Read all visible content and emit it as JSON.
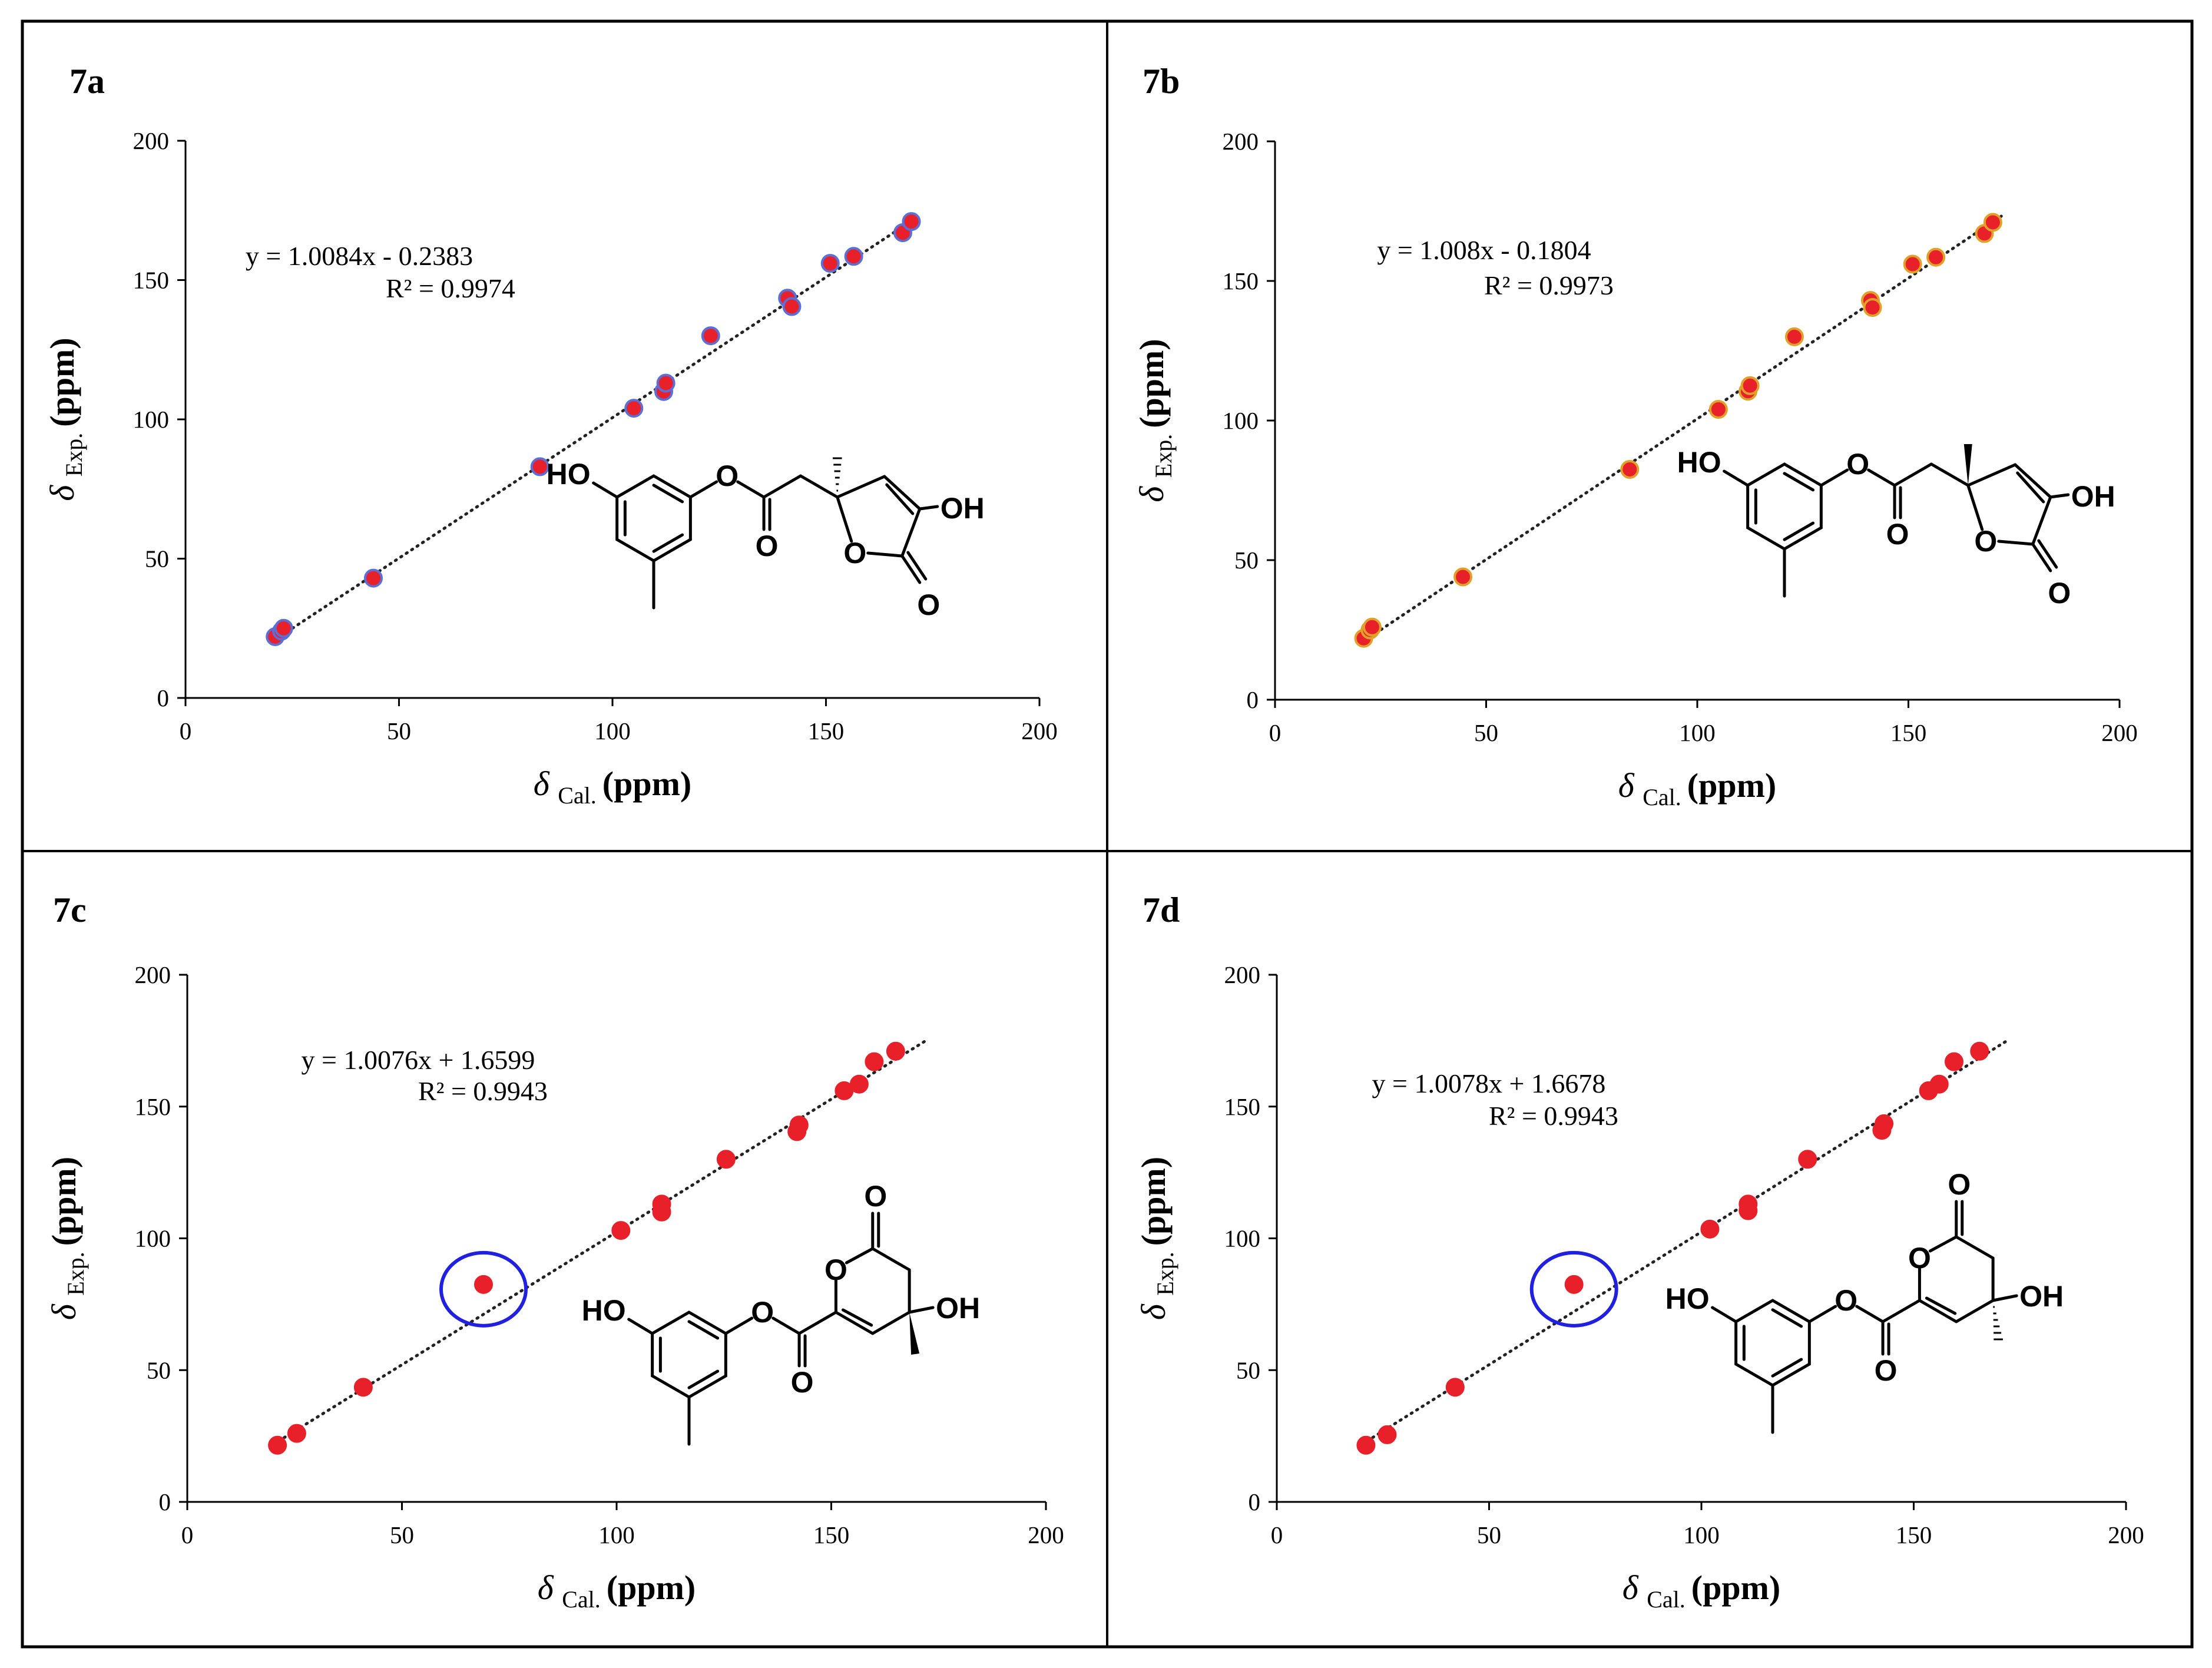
{
  "chart_data": [
    {
      "id": "7a",
      "type": "scatter",
      "panel_label": "7a",
      "xlabel": "δ Cal. (ppm)",
      "ylabel": "δ Exp. (ppm)",
      "xlim": [
        0,
        200
      ],
      "ylim": [
        0,
        200
      ],
      "xticks": [
        0,
        50,
        100,
        150,
        200
      ],
      "yticks": [
        0,
        50,
        100,
        150,
        200
      ],
      "trendline": {
        "slope": 1.0084,
        "intercept": -0.2383,
        "style": "dotted"
      },
      "equation": "y = 1.0084x - 0.2383",
      "r2": "R² = 0.9974",
      "marker_color": "#e8202a",
      "marker_edge": "#5b6fd6",
      "highlighted_point": null,
      "points": [
        {
          "x": 21,
          "y": 22
        },
        {
          "x": 22.5,
          "y": 24
        },
        {
          "x": 23,
          "y": 25
        },
        {
          "x": 44,
          "y": 43
        },
        {
          "x": 83,
          "y": 83
        },
        {
          "x": 105,
          "y": 104
        },
        {
          "x": 112,
          "y": 110
        },
        {
          "x": 112.5,
          "y": 113
        },
        {
          "x": 123,
          "y": 130
        },
        {
          "x": 141,
          "y": 143.5
        },
        {
          "x": 142,
          "y": 140.5
        },
        {
          "x": 151,
          "y": 156
        },
        {
          "x": 156.5,
          "y": 158.5
        },
        {
          "x": 168,
          "y": 167
        },
        {
          "x": 170,
          "y": 171
        }
      ],
      "structure": {
        "labels": [
          "HO",
          "O",
          "O",
          "OH",
          "O",
          "O"
        ],
        "stereo": "hash"
      }
    },
    {
      "id": "7b",
      "type": "scatter",
      "panel_label": "7b",
      "xlabel": "δ Cal. (ppm)",
      "ylabel": "δ Exp. (ppm)",
      "xlim": [
        0,
        200
      ],
      "ylim": [
        0,
        200
      ],
      "xticks": [
        0,
        50,
        100,
        150,
        200
      ],
      "yticks": [
        0,
        50,
        100,
        150,
        200
      ],
      "trendline": {
        "slope": 1.008,
        "intercept": -0.1804,
        "style": "dotted"
      },
      "equation": "y = 1.008x - 0.1804",
      "r2": "R² = 0.9973",
      "marker_color": "#e8202a",
      "marker_edge": "#e0a02a",
      "highlighted_point": null,
      "points": [
        {
          "x": 21,
          "y": 22
        },
        {
          "x": 22.5,
          "y": 25
        },
        {
          "x": 23,
          "y": 26
        },
        {
          "x": 44.5,
          "y": 44
        },
        {
          "x": 84,
          "y": 82.5
        },
        {
          "x": 105,
          "y": 104
        },
        {
          "x": 112,
          "y": 110.5
        },
        {
          "x": 112.5,
          "y": 112.5
        },
        {
          "x": 123,
          "y": 130
        },
        {
          "x": 141,
          "y": 143
        },
        {
          "x": 141.5,
          "y": 140.5
        },
        {
          "x": 151,
          "y": 156
        },
        {
          "x": 156.5,
          "y": 158.5
        },
        {
          "x": 168,
          "y": 167
        },
        {
          "x": 170,
          "y": 171
        }
      ],
      "structure": {
        "labels": [
          "HO",
          "O",
          "O",
          "OH",
          "O",
          "O"
        ],
        "stereo": "wedge"
      }
    },
    {
      "id": "7c",
      "type": "scatter",
      "panel_label": "7c",
      "xlabel": "δ Cal. (ppm)",
      "ylabel": "δ Exp. (ppm)",
      "xlim": [
        0,
        200
      ],
      "ylim": [
        0,
        200
      ],
      "xticks": [
        0,
        50,
        100,
        150,
        200
      ],
      "yticks": [
        0,
        50,
        100,
        150,
        200
      ],
      "trendline": {
        "slope": 1.0076,
        "intercept": 1.6599,
        "style": "dotted"
      },
      "equation": "y = 1.0076x + 1.6599",
      "r2": "R² = 0.9943",
      "marker_color": "#e8202a",
      "marker_edge": "#e8202a",
      "highlighted_point": {
        "x": 69,
        "y": 82.5
      },
      "highlight_color": "#2020e0",
      "points": [
        {
          "x": 21,
          "y": 21.5
        },
        {
          "x": 25.5,
          "y": 26
        },
        {
          "x": 41,
          "y": 43.5
        },
        {
          "x": 69,
          "y": 82.5
        },
        {
          "x": 101,
          "y": 103
        },
        {
          "x": 110.5,
          "y": 110
        },
        {
          "x": 110.5,
          "y": 113
        },
        {
          "x": 125.5,
          "y": 130
        },
        {
          "x": 142,
          "y": 140.5
        },
        {
          "x": 142.5,
          "y": 143
        },
        {
          "x": 153,
          "y": 156
        },
        {
          "x": 156.5,
          "y": 158.5
        },
        {
          "x": 160,
          "y": 167
        },
        {
          "x": 165,
          "y": 171
        }
      ],
      "structure": {
        "labels": [
          "HO",
          "O",
          "O",
          "O",
          "O",
          "OH"
        ],
        "stereo": "wedge"
      }
    },
    {
      "id": "7d",
      "type": "scatter",
      "panel_label": "7d",
      "xlabel": "δ Cal. (ppm)",
      "ylabel": "δ Exp. (ppm)",
      "xlim": [
        0,
        200
      ],
      "ylim": [
        0,
        200
      ],
      "xticks": [
        0,
        50,
        100,
        150,
        200
      ],
      "yticks": [
        0,
        50,
        100,
        150,
        200
      ],
      "trendline": {
        "slope": 1.0078,
        "intercept": 1.6678,
        "style": "dotted"
      },
      "equation": "y = 1.0078x + 1.6678",
      "r2": "R² = 0.9943",
      "marker_color": "#e8202a",
      "marker_edge": "#e8202a",
      "highlighted_point": {
        "x": 70,
        "y": 82.5
      },
      "highlight_color": "#2020e0",
      "points": [
        {
          "x": 21,
          "y": 21.5
        },
        {
          "x": 26,
          "y": 25.5
        },
        {
          "x": 42,
          "y": 43.5
        },
        {
          "x": 70,
          "y": 82.5
        },
        {
          "x": 102,
          "y": 103.5
        },
        {
          "x": 111,
          "y": 110.5
        },
        {
          "x": 111,
          "y": 113
        },
        {
          "x": 125,
          "y": 130
        },
        {
          "x": 142.5,
          "y": 141
        },
        {
          "x": 143,
          "y": 143.5
        },
        {
          "x": 153.5,
          "y": 156
        },
        {
          "x": 156,
          "y": 158.5
        },
        {
          "x": 159.5,
          "y": 167
        },
        {
          "x": 165.5,
          "y": 171
        }
      ],
      "structure": {
        "labels": [
          "HO",
          "O",
          "O",
          "O",
          "O",
          "OH"
        ],
        "stereo": "hash"
      }
    }
  ]
}
